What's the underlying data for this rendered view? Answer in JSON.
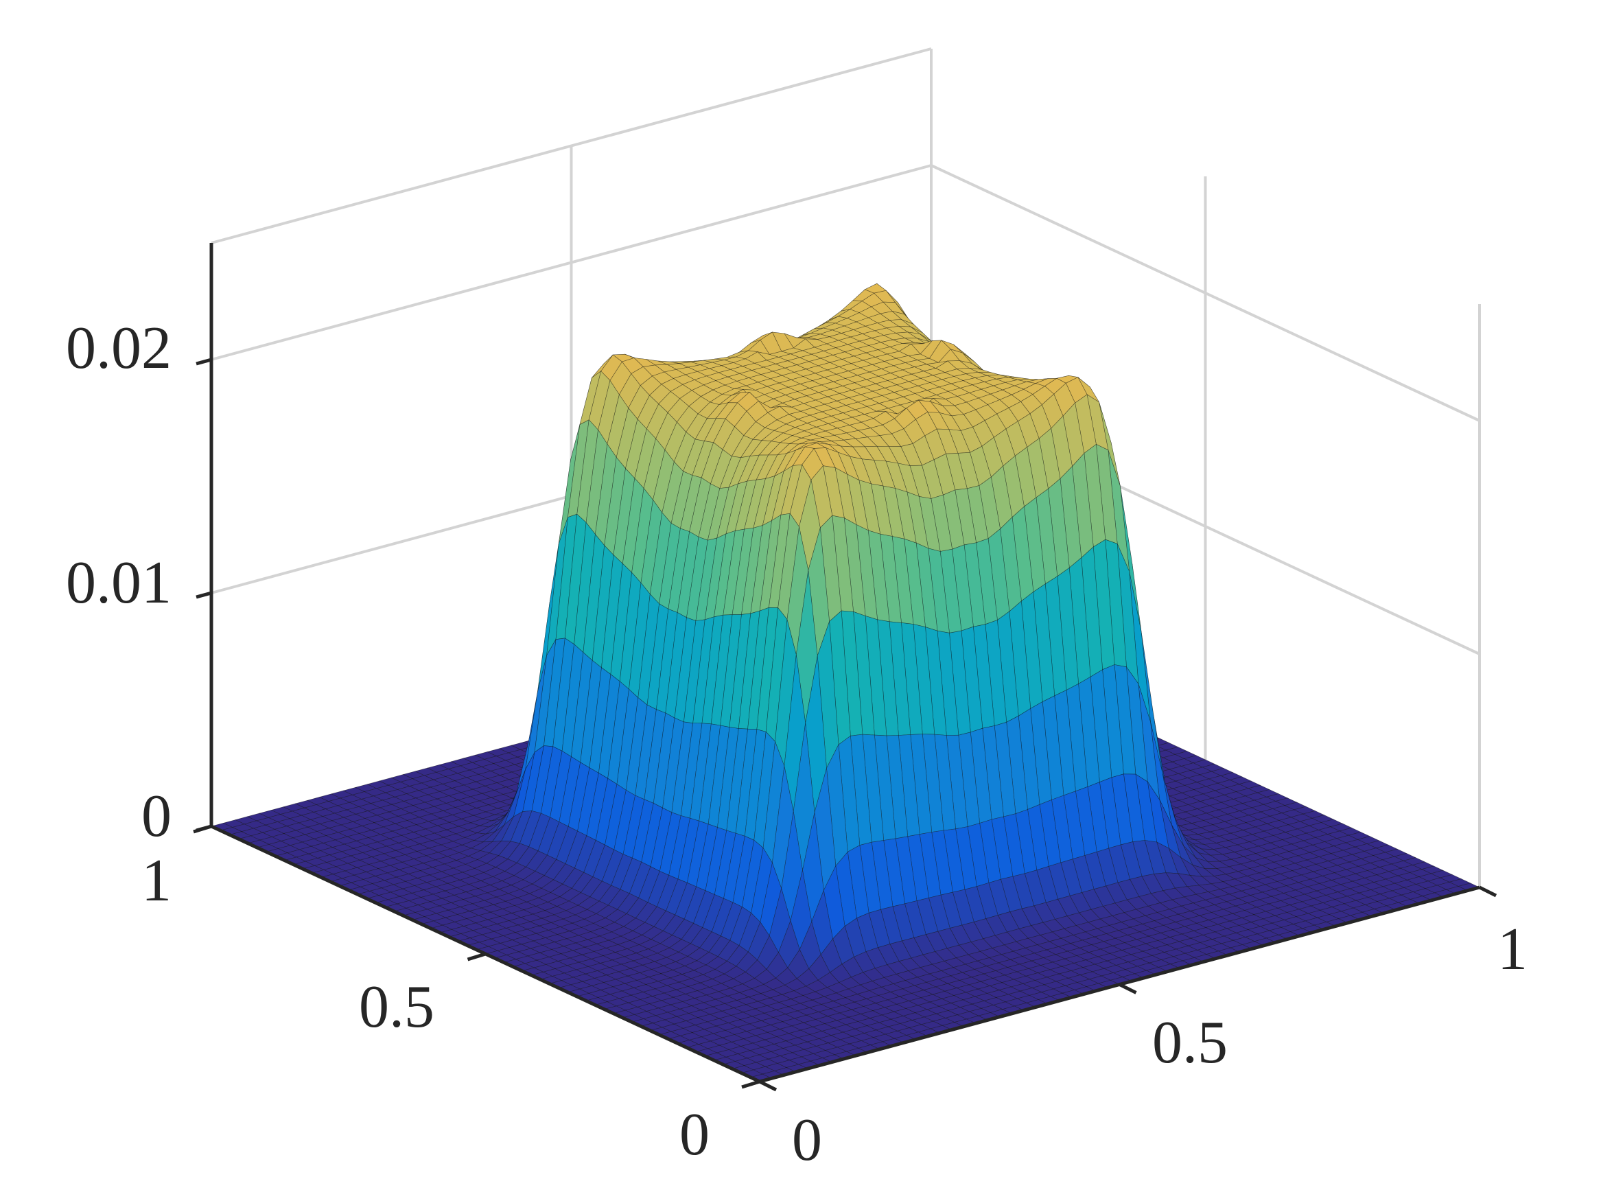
{
  "chart_data": {
    "type": "surface",
    "title": "",
    "xlabel": "",
    "ylabel": "",
    "zlabel": "",
    "xlim": [
      0,
      1
    ],
    "ylim": [
      0,
      1
    ],
    "zlim": [
      0,
      0.025
    ],
    "grid": true,
    "colormap": "parula",
    "x_ticks": [
      {
        "value": 0,
        "label": "0"
      },
      {
        "value": 0.5,
        "label": "0.5"
      },
      {
        "value": 1,
        "label": "1"
      }
    ],
    "y_ticks": [
      {
        "value": 0,
        "label": "0"
      },
      {
        "value": 0.5,
        "label": "0.5"
      },
      {
        "value": 1,
        "label": "1"
      }
    ],
    "z_ticks": [
      {
        "value": 0,
        "label": "0"
      },
      {
        "value": 0.01,
        "label": "0.01"
      },
      {
        "value": 0.02,
        "label": "0.02"
      }
    ],
    "surface": {
      "description_of_shape": "raised plateau over 0.25..0.75 in x and y with four corner peaks and saddles on edge midpoints",
      "max_value": 0.024,
      "plateau_value": 0.0205,
      "edge_mid_value": 0.019,
      "center_value": 0.021,
      "base_value": 0
    }
  }
}
